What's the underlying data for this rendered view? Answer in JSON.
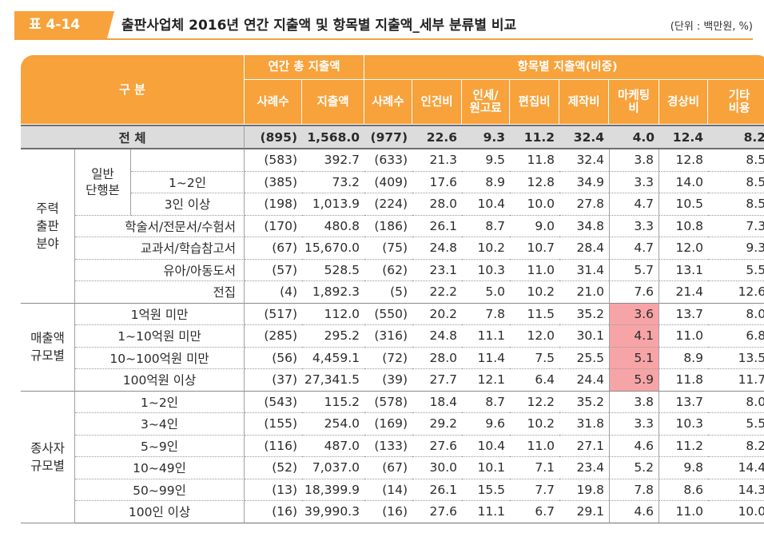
{
  "header": {
    "tag": "표 4-14",
    "title": "출판사업체 2016년 연간 지출액 및 항목별 지출액_세부 분류별 비교",
    "unit": "(단위 : 백만원, %)"
  },
  "columns": {
    "gubun": "구 분",
    "group1": "연간 총 지출액",
    "group2": "항목별 지출액(비중)",
    "g1_cases": "사례수",
    "g1_amount": "지출액",
    "g2_cases": "사례수",
    "labor": "인건비",
    "printing_1": "인세/",
    "printing_2": "원고료",
    "editing": "편집비",
    "production": "제작비",
    "marketing_1": "마케팅",
    "marketing_2": "비",
    "admin": "경상비",
    "other_1": "기타",
    "other_2": "비용"
  },
  "total": {
    "label": "전 체",
    "values": [
      "(895)",
      "1,568.0",
      "(977)",
      "22.6",
      "9.3",
      "11.2",
      "32.4",
      "4.0",
      "12.4",
      "8.2"
    ]
  },
  "groups": {
    "field": {
      "label_lines": [
        "주력",
        "출판",
        "분야"
      ],
      "general_label_lines": [
        "일반",
        "단행본"
      ],
      "rows": [
        {
          "label": "",
          "values": [
            "(583)",
            "392.7",
            "(633)",
            "21.3",
            "9.5",
            "11.8",
            "32.4",
            "3.8",
            "12.8",
            "8.5"
          ]
        },
        {
          "label": "1~2인",
          "values": [
            "(385)",
            "73.2",
            "(409)",
            "17.6",
            "8.9",
            "12.8",
            "34.9",
            "3.3",
            "14.0",
            "8.5"
          ]
        },
        {
          "label": "3인 이상",
          "values": [
            "(198)",
            "1,013.9",
            "(224)",
            "28.0",
            "10.4",
            "10.0",
            "27.8",
            "4.7",
            "10.5",
            "8.5"
          ]
        },
        {
          "label": "학술서/전문서/수험서",
          "values": [
            "(170)",
            "480.8",
            "(186)",
            "26.1",
            "8.7",
            "9.0",
            "34.8",
            "3.3",
            "10.8",
            "7.3"
          ]
        },
        {
          "label": "교과서/학습참고서",
          "values": [
            "(67)",
            "15,670.0",
            "(75)",
            "24.8",
            "10.2",
            "10.7",
            "28.4",
            "4.7",
            "12.0",
            "9.3"
          ]
        },
        {
          "label": "유아/아동도서",
          "values": [
            "(57)",
            "528.5",
            "(62)",
            "23.1",
            "10.3",
            "11.0",
            "31.4",
            "5.7",
            "13.1",
            "5.5"
          ]
        },
        {
          "label": "전집",
          "values": [
            "(4)",
            "1,892.3",
            "(5)",
            "22.2",
            "5.0",
            "10.2",
            "21.0",
            "7.6",
            "21.4",
            "12.6"
          ]
        }
      ]
    },
    "sales": {
      "label_lines": [
        "매출액",
        "규모별"
      ],
      "rows": [
        {
          "label": "1억원 미만",
          "values": [
            "(517)",
            "112.0",
            "(550)",
            "20.2",
            "7.8",
            "11.5",
            "35.2",
            "3.6",
            "13.7",
            "8.0"
          ]
        },
        {
          "label": "1~10억원 미만",
          "values": [
            "(285)",
            "295.2",
            "(316)",
            "24.8",
            "11.1",
            "12.0",
            "30.1",
            "4.1",
            "11.0",
            "6.8"
          ]
        },
        {
          "label": "10~100억원 미만",
          "values": [
            "(56)",
            "4,459.1",
            "(72)",
            "28.0",
            "11.4",
            "7.5",
            "25.5",
            "5.1",
            "8.9",
            "13.5"
          ]
        },
        {
          "label": "100억원 이상",
          "values": [
            "(37)",
            "27,341.5",
            "(39)",
            "27.7",
            "12.1",
            "6.4",
            "24.4",
            "5.9",
            "11.8",
            "11.7"
          ]
        }
      ]
    },
    "employees": {
      "label_lines": [
        "종사자",
        "규모별"
      ],
      "rows": [
        {
          "label": "1~2인",
          "values": [
            "(543)",
            "115.2",
            "(578)",
            "18.4",
            "8.7",
            "12.2",
            "35.2",
            "3.8",
            "13.7",
            "8.0"
          ]
        },
        {
          "label": "3~4인",
          "values": [
            "(155)",
            "254.0",
            "(169)",
            "29.2",
            "9.6",
            "10.2",
            "31.8",
            "3.3",
            "10.3",
            "5.5"
          ]
        },
        {
          "label": "5~9인",
          "values": [
            "(116)",
            "487.0",
            "(133)",
            "27.6",
            "10.4",
            "11.0",
            "27.1",
            "4.6",
            "11.2",
            "8.2"
          ]
        },
        {
          "label": "10~49인",
          "values": [
            "(52)",
            "7,037.0",
            "(67)",
            "30.0",
            "10.1",
            "7.1",
            "23.4",
            "5.2",
            "9.8",
            "14.4"
          ]
        },
        {
          "label": "50~99인",
          "values": [
            "(13)",
            "18,399.9",
            "(14)",
            "26.1",
            "15.5",
            "7.7",
            "19.8",
            "7.8",
            "8.6",
            "14.3"
          ]
        },
        {
          "label": "100인 이상",
          "values": [
            "(16)",
            "39,990.3",
            "(16)",
            "27.6",
            "11.1",
            "6.7",
            "29.1",
            "4.6",
            "11.0",
            "10.0"
          ]
        }
      ]
    }
  },
  "colors": {
    "accent": "#f7a23b",
    "highlight": "#f7a4a7",
    "total_row": "#dcdcdc"
  }
}
